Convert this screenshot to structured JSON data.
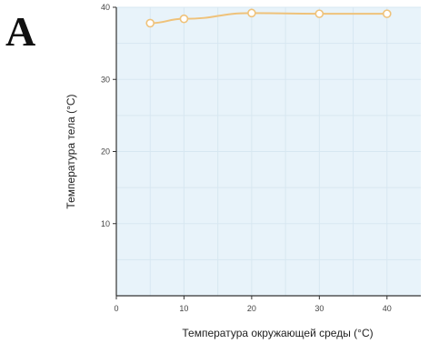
{
  "panel_label": "A",
  "colors": {
    "plot_background": "#e8f3fa",
    "grid": "#d7e7f1",
    "axis": "#333333",
    "series": "#efc27a"
  },
  "chart_data": {
    "type": "line",
    "title": "",
    "xlabel": "Температура окружающей среды (°C)",
    "ylabel": "Температура тела (°C)",
    "xlim": [
      0,
      45
    ],
    "ylim": [
      0,
      40
    ],
    "xticks": [
      0,
      10,
      20,
      30,
      40
    ],
    "yticks": [
      10,
      20,
      30,
      40
    ],
    "grid": true,
    "legend": "none",
    "series": [
      {
        "x": [
          5,
          10,
          20,
          30,
          40
        ],
        "y": [
          37.8,
          38.4,
          39.2,
          39.1,
          39.1
        ],
        "color": "#efc27a",
        "marker": "open-circle"
      }
    ]
  }
}
